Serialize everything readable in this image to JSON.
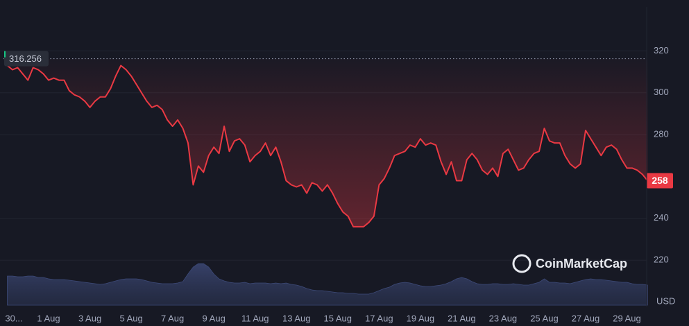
{
  "chart_data": {
    "type": "line",
    "categories": [
      "30...",
      null,
      null,
      null,
      null,
      null,
      null,
      null,
      "1 Aug",
      null,
      null,
      null,
      null,
      null,
      null,
      null,
      "3 Aug",
      null,
      null,
      null,
      null,
      null,
      null,
      null,
      "5 Aug",
      null,
      null,
      null,
      null,
      null,
      null,
      null,
      "7 Aug",
      null,
      null,
      null,
      null,
      null,
      null,
      null,
      "9 Aug",
      null,
      null,
      null,
      null,
      null,
      null,
      null,
      "11 Aug",
      null,
      null,
      null,
      null,
      null,
      null,
      null,
      "13 Aug",
      null,
      null,
      null,
      null,
      null,
      null,
      null,
      "15 Aug",
      null,
      null,
      null,
      null,
      null,
      null,
      null,
      "17 Aug",
      null,
      null,
      null,
      null,
      null,
      null,
      null,
      "19 Aug",
      null,
      null,
      null,
      null,
      null,
      null,
      null,
      "21 Aug",
      null,
      null,
      null,
      null,
      null,
      null,
      null,
      "23 Aug",
      null,
      null,
      null,
      null,
      null,
      null,
      null,
      "25 Aug",
      null,
      null,
      null,
      null,
      null,
      null,
      null,
      "27 Aug",
      null,
      null,
      null,
      null,
      null,
      null,
      null,
      "29 Aug",
      null,
      null,
      null,
      null
    ],
    "series": [
      {
        "color": "#ea3943",
        "values": [
          313,
          311,
          312,
          309,
          306,
          312,
          311,
          309,
          306,
          307,
          306,
          306,
          301,
          299,
          298,
          296,
          293,
          296,
          298,
          298,
          302,
          308,
          313,
          311,
          308,
          304,
          300,
          296,
          293,
          294,
          292,
          287,
          284,
          287,
          283,
          276,
          256,
          265,
          262,
          270,
          274,
          271,
          284,
          272,
          277,
          278,
          275,
          267,
          270,
          272,
          276,
          270,
          274,
          267,
          258,
          256,
          255,
          256,
          252,
          257,
          256,
          253,
          256,
          252,
          247,
          243,
          241,
          236,
          236,
          236,
          238,
          241,
          256,
          259,
          264,
          270,
          271,
          272,
          275,
          274,
          278,
          275,
          276,
          275,
          267,
          261,
          267,
          258,
          258,
          268,
          271,
          268,
          263,
          261,
          264,
          260,
          271,
          273,
          268,
          263,
          264,
          268,
          271,
          272,
          283,
          277,
          276,
          276,
          270,
          266,
          264,
          266,
          282,
          278,
          274,
          270,
          274,
          275,
          273,
          268,
          264,
          264,
          263,
          261,
          258
        ]
      },
      {
        "color": "#2b3452",
        "axis": "y2",
        "type": "area",
        "values": [
          42,
          42,
          41,
          41,
          42,
          42,
          40,
          40,
          38,
          37,
          37,
          37,
          36,
          35,
          34,
          33,
          32,
          31,
          30,
          31,
          33,
          35,
          37,
          38,
          38,
          38,
          37,
          35,
          33,
          32,
          31,
          31,
          31,
          32,
          34,
          45,
          55,
          60,
          60,
          55,
          45,
          38,
          35,
          33,
          32,
          32,
          33,
          31,
          32,
          32,
          32,
          31,
          32,
          31,
          32,
          30,
          29,
          27,
          24,
          22,
          21,
          21,
          20,
          19,
          18,
          18,
          17,
          17,
          16,
          16,
          16,
          18,
          21,
          24,
          26,
          30,
          32,
          33,
          32,
          30,
          28,
          27,
          27,
          28,
          29,
          31,
          34,
          38,
          40,
          38,
          34,
          31,
          30,
          30,
          31,
          31,
          30,
          30,
          31,
          30,
          29,
          29,
          31,
          33,
          38,
          33,
          33,
          32,
          32,
          31,
          33,
          35,
          37,
          38,
          37,
          37,
          36,
          35,
          34,
          33,
          33,
          31,
          30,
          30,
          29
        ]
      }
    ],
    "ylim": [
      198.5,
      341
    ],
    "yticks": [
      220,
      240,
      280,
      300,
      320
    ],
    "y2lim": [
      0,
      100
    ],
    "grid": true,
    "reference_line": 316.256,
    "currency": "USD",
    "watermark": "CoinMarketCap"
  }
}
